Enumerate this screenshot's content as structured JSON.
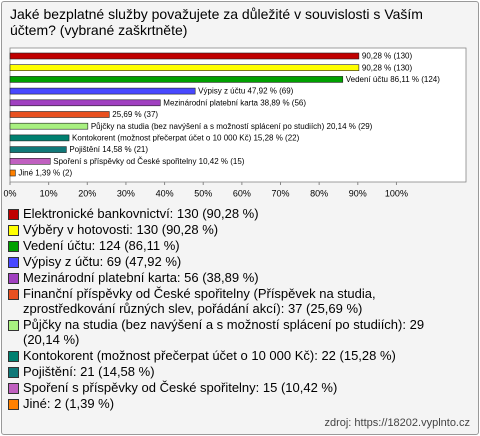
{
  "chart_data": {
    "type": "bar",
    "title": "Jaké bezplatné služby považujete za důležité v souvislosti s Vaším účtem? (vybrané zaškrtněte)",
    "categories": [
      "Elektronické bankovnictví: 130 (90,28 %)",
      "Výběry v hotovosti: 130 (90,28 %)",
      "Vedení účtu: 124 (86,11 %)",
      "Výpisy z účtu: 69 (47,92 %)",
      "Mezinárodní platební karta: 56 (38,89 %)",
      "Finanční příspěvky od České spořitelny (Příspěvek na studia, zprostředkování různých slev, pořádání akcí): 37 (25,69 %)",
      "Půjčky na studia (bez navýšení a s možností splácení po studiích): 29 (20,14 %)",
      "Kontokorent (možnost přečerpat účet o 10 000 Kč): 22 (15,28 %)",
      "Pojištění: 21 (14,58 %)",
      "Spoření s příspěvky od České spořitelny: 15 (10,42 %)",
      "Jiné: 2 (1,39 %)"
    ],
    "values": [
      90.28,
      90.28,
      86.11,
      47.92,
      38.89,
      25.69,
      20.14,
      15.28,
      14.58,
      10.42,
      1.39
    ],
    "value_labels": [
      "90,28 % (130)",
      "90,28 % (130)",
      "Vedení účtu 86,11 % (124)",
      "Výpisy z účtu 47,92 % (69)",
      "Mezinárodní platební karta 38,89 % (56)",
      "25,69 % (37)",
      "Půjčky na studia (bez navýšení a s možností splácení po studiích) 20,14 % (29)",
      "Kontokorent (možnost přečerpat účet o 10 000 Kč) 15,28 % (22)",
      "Pojištění 14,58 % (21)",
      "Spoření s příspěvky od České spořitelny 10,42 % (15)",
      "Jiné 1,39 % (2)"
    ],
    "colors": [
      "#c00000",
      "#ffff00",
      "#00a000",
      "#4848ff",
      "#a040c0",
      "#e85020",
      "#a8f080",
      "#008070",
      "#107878",
      "#c060c0",
      "#ff8000"
    ],
    "xlim": [
      0,
      118
    ],
    "xticks": [
      {
        "value": 0,
        "label": "0%"
      },
      {
        "value": 10,
        "label": "10%"
      },
      {
        "value": 20,
        "label": "20%"
      },
      {
        "value": 30,
        "label": "30%"
      },
      {
        "value": 40,
        "label": "40%"
      },
      {
        "value": 50,
        "label": "50%"
      },
      {
        "value": 60,
        "label": "60%"
      },
      {
        "value": 70,
        "label": "70%"
      },
      {
        "value": 80,
        "label": "80%"
      },
      {
        "value": 90,
        "label": "90%"
      },
      {
        "value": 100,
        "label": "100%"
      }
    ],
    "source": "zdroj: https://18202.vyplnto.cz"
  }
}
